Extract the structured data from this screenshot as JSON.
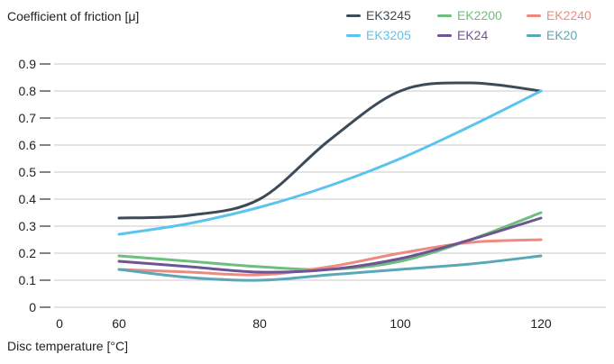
{
  "chart_data": {
    "type": "line",
    "ylabel": "Coefficient of friction [μ]",
    "xlabel": "Disc temperature [°C]",
    "x_ticks": [
      "0",
      "60",
      "80",
      "100",
      "120"
    ],
    "y_ticks": [
      "0",
      "0.1",
      "0.2",
      "0.3",
      "0.4",
      "0.5",
      "0.6",
      "0.7",
      "0.8",
      "0.9"
    ],
    "ylim": [
      0,
      0.9
    ],
    "grid": "horizontal",
    "legend_position": "top-right",
    "x": [
      60,
      70,
      80,
      90,
      100,
      110,
      120
    ],
    "series": [
      {
        "name": "EK3245",
        "color": "#3d4a57",
        "values": [
          0.33,
          0.34,
          0.4,
          0.62,
          0.8,
          0.83,
          0.8
        ]
      },
      {
        "name": "EK2200",
        "color": "#6dbf7b",
        "values": [
          0.19,
          0.17,
          0.15,
          0.14,
          0.17,
          0.25,
          0.35
        ]
      },
      {
        "name": "EK2240",
        "color": "#ef8a80",
        "values": [
          0.14,
          0.13,
          0.12,
          0.15,
          0.2,
          0.24,
          0.25
        ]
      },
      {
        "name": "EK3205",
        "color": "#5bc4ee",
        "values": [
          0.27,
          0.31,
          0.37,
          0.45,
          0.55,
          0.67,
          0.8
        ]
      },
      {
        "name": "EK24",
        "color": "#6d5495",
        "values": [
          0.17,
          0.15,
          0.13,
          0.14,
          0.18,
          0.25,
          0.33
        ]
      },
      {
        "name": "EK20",
        "color": "#5aa7b7",
        "values": [
          0.14,
          0.11,
          0.1,
          0.12,
          0.14,
          0.16,
          0.19
        ]
      }
    ]
  }
}
